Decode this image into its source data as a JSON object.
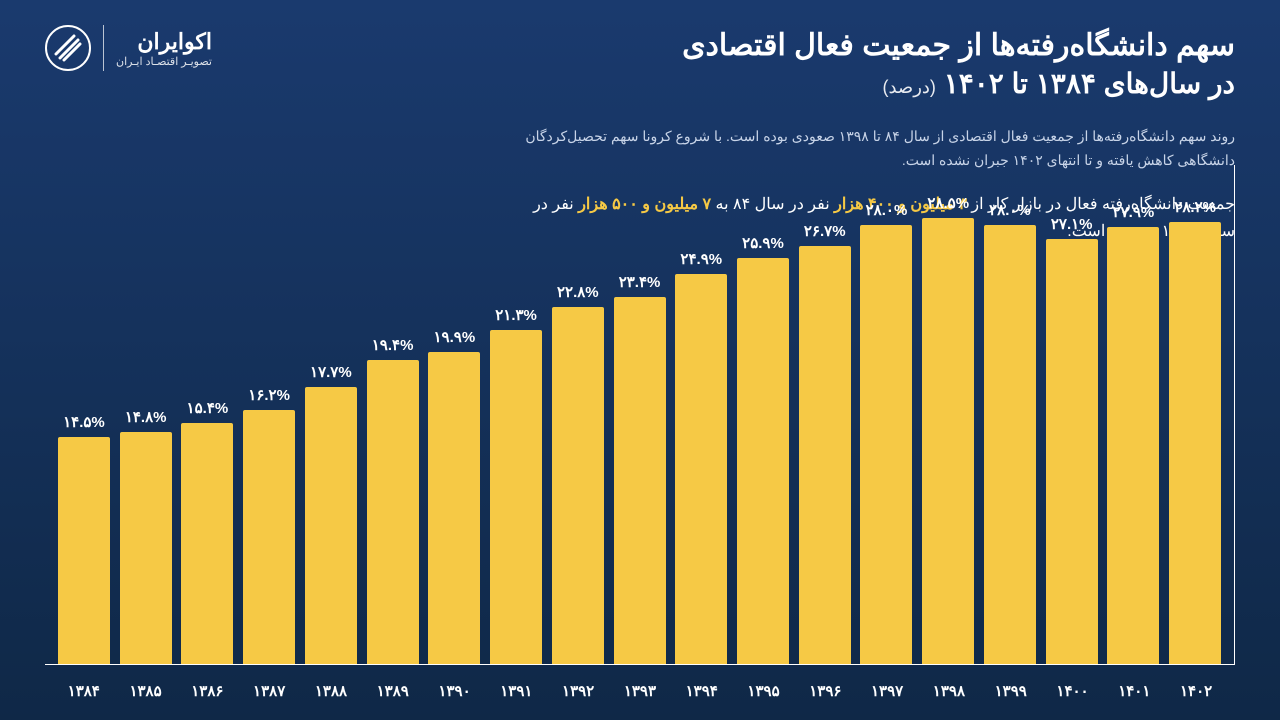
{
  "title": {
    "line1": "سهم دانشگاه‌رفته‌ها از جمعیت فعال اقتصادی",
    "line2": "در سال‌های ۱۳۸۴ تا ۱۴۰۲",
    "unit": "(درصد)"
  },
  "logo": {
    "name": "اکوایران",
    "tagline": "تصویـر اقتصـاد ایـران"
  },
  "description": {
    "para1": "روند سهم دانشگاه‌رفته‌ها از جمعیت فعال اقتصادی از سال ۸۴ تا ۱۳۹۸ صعودی بوده است. با شروع کرونا سهم تحصیل‌کردگان دانشگاهی کاهش یافته و تا انتهای ۱۴۰۲ جبران نشده است.",
    "para2_pre": "جمعیت دانشگاه‌رفته فعال در بازار کار از ",
    "para2_hl1": "۳ میلیون و ۴۰۰ هزار",
    "para2_mid1": " نفر در سال ۸۴ به ",
    "para2_hl2": "۷ میلیون و ۵۰۰ هزار",
    "para2_mid2": " نفر در سـال ۱۴۰۲ رسـیده است."
  },
  "chart": {
    "type": "bar",
    "bar_color": "#f6c945",
    "text_color": "#ffffff",
    "axis_color": "#ffffff",
    "background_gradient": [
      "#1a3a6e",
      "#0f2847"
    ],
    "max_value": 30.0,
    "label_fontsize": 15,
    "years": [
      "۱۳۸۴",
      "۱۳۸۵",
      "۱۳۸۶",
      "۱۳۸۷",
      "۱۳۸۸",
      "۱۳۸۹",
      "۱۳۹۰",
      "۱۳۹۱",
      "۱۳۹۲",
      "۱۳۹۳",
      "۱۳۹۴",
      "۱۳۹۵",
      "۱۳۹۶",
      "۱۳۹۷",
      "۱۳۹۸",
      "۱۳۹۹",
      "۱۴۰۰",
      "۱۴۰۱",
      "۱۴۰۲"
    ],
    "values": [
      14.5,
      14.8,
      15.4,
      16.2,
      17.7,
      19.4,
      19.9,
      21.3,
      22.8,
      23.4,
      24.9,
      25.9,
      26.7,
      28.0,
      28.5,
      28.0,
      27.1,
      27.9,
      28.2
    ],
    "display_labels": [
      "۱۴.۵%",
      "۱۴.۸%",
      "۱۵.۴%",
      "۱۶.۲%",
      "۱۷.۷%",
      "۱۹.۴%",
      "۱۹.۹%",
      "۲۱.۳%",
      "۲۲.۸%",
      "۲۳.۴%",
      "۲۴.۹%",
      "۲۵.۹%",
      "۲۶.۷%",
      "۲۸.۰%",
      "۲۸.۵%",
      "۲۸.۰%",
      "۲۷.۱%",
      "۲۷.۹%",
      "۲۸.۲%"
    ]
  }
}
